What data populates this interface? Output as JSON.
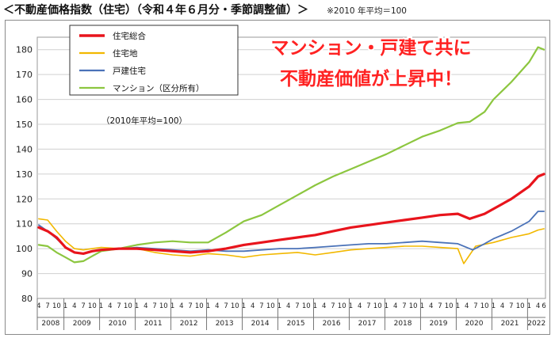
{
  "header": {
    "title": "＜不動産価格指数（住宅）（令和４年６月分・季節調整値）＞",
    "note": "※2010 年平均＝100"
  },
  "chart_data": {
    "type": "line",
    "title": "",
    "xlabel": "",
    "ylabel": "",
    "ylim": [
      80,
      185
    ],
    "yticks": [
      80,
      90,
      100,
      110,
      120,
      130,
      140,
      150,
      160,
      170,
      180
    ],
    "xlim": [
      "2008-04",
      "2022-06"
    ],
    "month_tick_labels": [
      "4",
      "7",
      "10",
      "1"
    ],
    "final_month_tick_labels": [
      "4",
      "6"
    ],
    "year_labels": [
      "2008",
      "2009",
      "2010",
      "2011",
      "2012",
      "2013",
      "2014",
      "2015",
      "2016",
      "2017",
      "2018",
      "2019",
      "2020",
      "2021",
      "2022"
    ],
    "grid": true,
    "legend": {
      "position": "top-left",
      "note": "（2010年平均=100）"
    },
    "annotation": {
      "line1": "マンション・戸建て共に",
      "line2": "不動産価値が上昇中！",
      "color": "#ff2222"
    },
    "series": [
      {
        "name": "住宅総合",
        "color": "#e8141c",
        "points": [
          [
            "2008-04",
            108.5
          ],
          [
            "2008-07",
            107
          ],
          [
            "2008-10",
            104.5
          ],
          [
            "2009-01",
            100.5
          ],
          [
            "2009-04",
            98.5
          ],
          [
            "2009-07",
            98
          ],
          [
            "2009-10",
            99
          ],
          [
            "2010-01",
            99.5
          ],
          [
            "2010-07",
            100
          ],
          [
            "2011-01",
            100
          ],
          [
            "2011-07",
            99.5
          ],
          [
            "2012-01",
            99
          ],
          [
            "2012-07",
            98.5
          ],
          [
            "2013-01",
            99
          ],
          [
            "2013-07",
            100
          ],
          [
            "2014-01",
            101.5
          ],
          [
            "2014-07",
            102.5
          ],
          [
            "2015-01",
            103.5
          ],
          [
            "2015-07",
            104.5
          ],
          [
            "2016-01",
            105.5
          ],
          [
            "2016-07",
            107
          ],
          [
            "2017-01",
            108.5
          ],
          [
            "2017-07",
            109.5
          ],
          [
            "2018-01",
            110.5
          ],
          [
            "2018-07",
            111.5
          ],
          [
            "2019-01",
            112.5
          ],
          [
            "2019-07",
            113.5
          ],
          [
            "2020-01",
            114
          ],
          [
            "2020-05",
            112
          ],
          [
            "2020-10",
            114
          ],
          [
            "2021-01",
            116
          ],
          [
            "2021-07",
            120
          ],
          [
            "2022-01",
            125
          ],
          [
            "2022-04",
            129
          ],
          [
            "2022-06",
            130
          ]
        ]
      },
      {
        "name": "住宅地",
        "color": "#f2b800",
        "points": [
          [
            "2008-04",
            112
          ],
          [
            "2008-07",
            111.5
          ],
          [
            "2008-10",
            107
          ],
          [
            "2009-01",
            103
          ],
          [
            "2009-04",
            100
          ],
          [
            "2009-07",
            99.5
          ],
          [
            "2009-10",
            100
          ],
          [
            "2010-01",
            100.5
          ],
          [
            "2010-07",
            100
          ],
          [
            "2011-01",
            100
          ],
          [
            "2011-07",
            98.5
          ],
          [
            "2012-01",
            97.5
          ],
          [
            "2012-07",
            97
          ],
          [
            "2013-01",
            98
          ],
          [
            "2013-07",
            97.5
          ],
          [
            "2014-01",
            96.5
          ],
          [
            "2014-07",
            97.5
          ],
          [
            "2015-01",
            98
          ],
          [
            "2015-07",
            98.5
          ],
          [
            "2016-01",
            97.5
          ],
          [
            "2016-07",
            98.5
          ],
          [
            "2017-01",
            99.5
          ],
          [
            "2017-07",
            100
          ],
          [
            "2018-01",
            100.5
          ],
          [
            "2018-07",
            101
          ],
          [
            "2019-01",
            101
          ],
          [
            "2019-07",
            100.5
          ],
          [
            "2020-01",
            100
          ],
          [
            "2020-03",
            94
          ],
          [
            "2020-07",
            101
          ],
          [
            "2021-01",
            102.5
          ],
          [
            "2021-07",
            104.5
          ],
          [
            "2022-01",
            106
          ],
          [
            "2022-04",
            107.5
          ],
          [
            "2022-06",
            108
          ]
        ]
      },
      {
        "name": "戸建住宅",
        "color": "#4a72b8",
        "points": [
          [
            "2008-04",
            109.5
          ],
          [
            "2008-07",
            107
          ],
          [
            "2008-10",
            104
          ],
          [
            "2009-01",
            100.5
          ],
          [
            "2009-04",
            98.5
          ],
          [
            "2009-07",
            98
          ],
          [
            "2009-10",
            99
          ],
          [
            "2010-01",
            99.5
          ],
          [
            "2010-07",
            100
          ],
          [
            "2011-01",
            100.5
          ],
          [
            "2011-07",
            100
          ],
          [
            "2012-01",
            99.5
          ],
          [
            "2012-07",
            99
          ],
          [
            "2013-01",
            99.5
          ],
          [
            "2013-07",
            99
          ],
          [
            "2014-01",
            99
          ],
          [
            "2014-07",
            99.5
          ],
          [
            "2015-01",
            100
          ],
          [
            "2015-07",
            100
          ],
          [
            "2016-01",
            100.5
          ],
          [
            "2016-07",
            101
          ],
          [
            "2017-01",
            101.5
          ],
          [
            "2017-07",
            102
          ],
          [
            "2018-01",
            102
          ],
          [
            "2018-07",
            102.5
          ],
          [
            "2019-01",
            103
          ],
          [
            "2019-07",
            102.5
          ],
          [
            "2020-01",
            102
          ],
          [
            "2020-06",
            99.5
          ],
          [
            "2020-10",
            102
          ],
          [
            "2021-01",
            104
          ],
          [
            "2021-07",
            107
          ],
          [
            "2022-01",
            111
          ],
          [
            "2022-04",
            115
          ],
          [
            "2022-06",
            115
          ]
        ]
      },
      {
        "name": "マンション（区分所有）",
        "color": "#8cc63f",
        "points": [
          [
            "2008-04",
            101.5
          ],
          [
            "2008-07",
            101
          ],
          [
            "2008-10",
            98.5
          ],
          [
            "2009-01",
            96.5
          ],
          [
            "2009-04",
            94.5
          ],
          [
            "2009-07",
            95
          ],
          [
            "2009-10",
            97
          ],
          [
            "2010-01",
            99
          ],
          [
            "2010-07",
            100
          ],
          [
            "2011-01",
            101.5
          ],
          [
            "2011-07",
            102.5
          ],
          [
            "2012-01",
            103
          ],
          [
            "2012-07",
            102.5
          ],
          [
            "2013-01",
            102.5
          ],
          [
            "2013-07",
            106.5
          ],
          [
            "2014-01",
            111
          ],
          [
            "2014-07",
            113.5
          ],
          [
            "2015-01",
            117.5
          ],
          [
            "2015-07",
            121.5
          ],
          [
            "2016-01",
            125.5
          ],
          [
            "2016-07",
            129
          ],
          [
            "2017-01",
            132
          ],
          [
            "2017-07",
            135
          ],
          [
            "2018-01",
            138
          ],
          [
            "2018-07",
            141.5
          ],
          [
            "2019-01",
            145
          ],
          [
            "2019-07",
            147.5
          ],
          [
            "2020-01",
            150.5
          ],
          [
            "2020-05",
            151
          ],
          [
            "2020-10",
            155
          ],
          [
            "2021-01",
            160
          ],
          [
            "2021-07",
            167
          ],
          [
            "2022-01",
            175
          ],
          [
            "2022-04",
            181
          ],
          [
            "2022-06",
            180
          ]
        ]
      }
    ]
  }
}
